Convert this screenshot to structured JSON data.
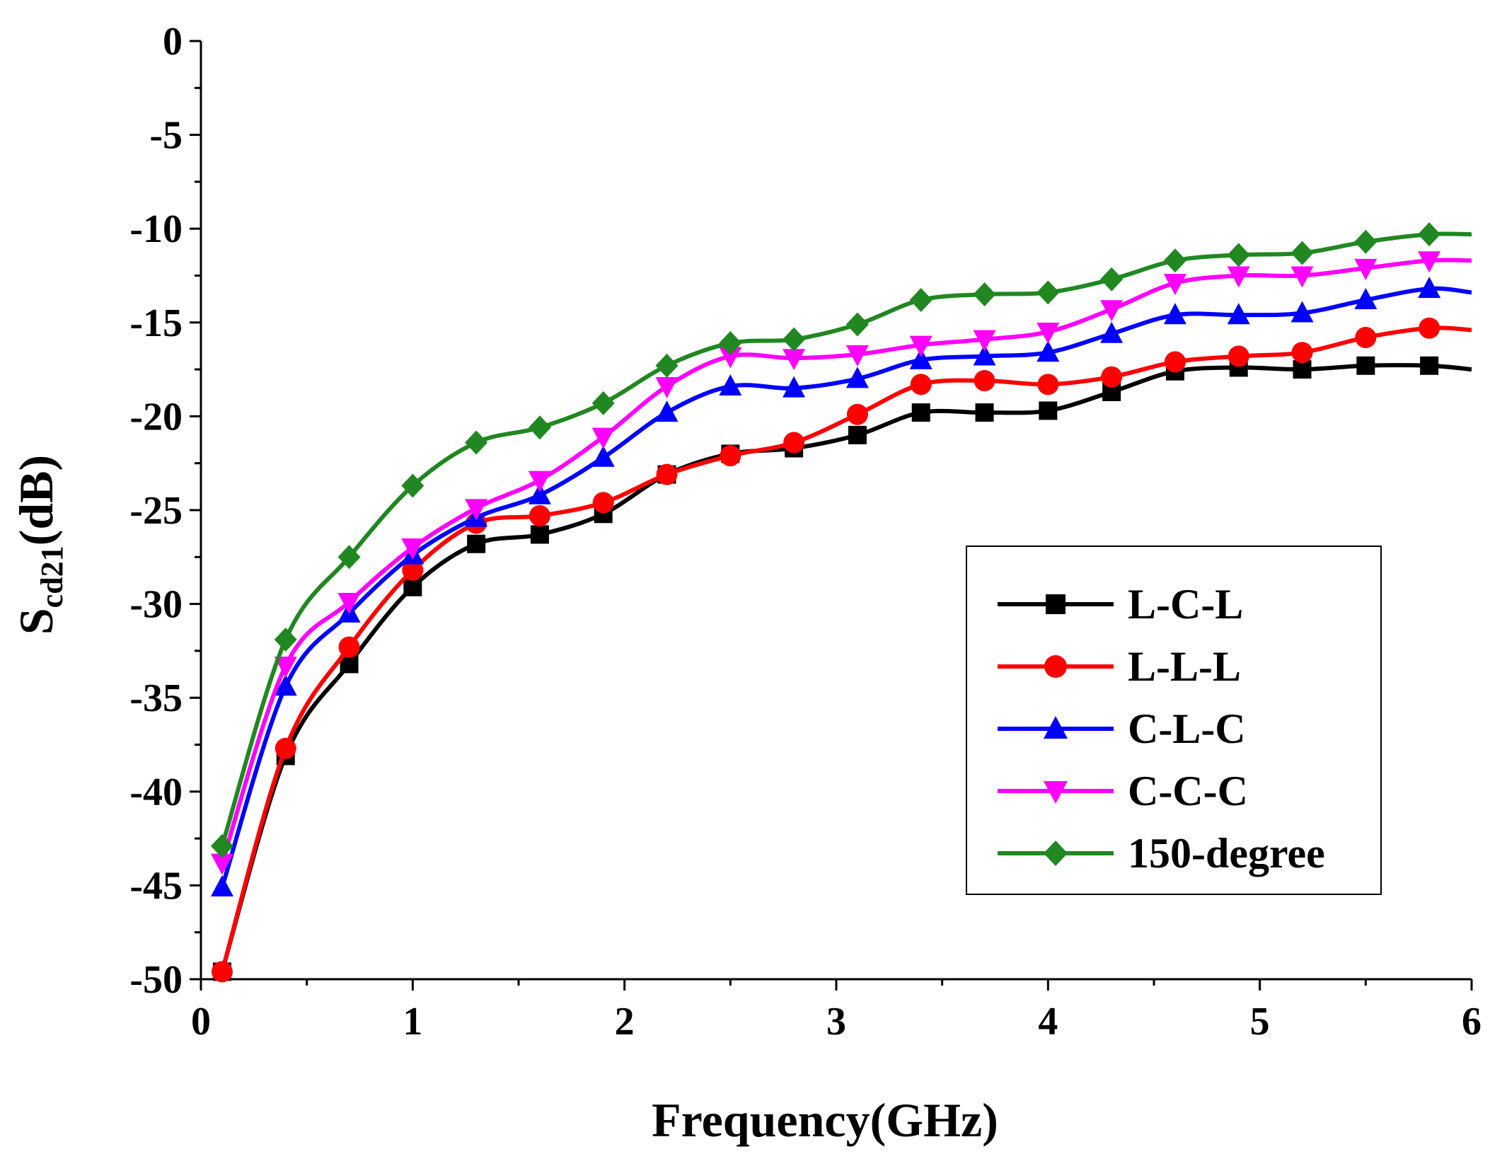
{
  "chart_data": {
    "type": "line",
    "title": "",
    "xlabel": "Frequency(GHz)",
    "ylabel_main": "S",
    "ylabel_sub": "cd21",
    "ylabel_unit": "(dB)",
    "xlim": [
      0,
      6
    ],
    "ylim": [
      -50,
      0
    ],
    "xticks": [
      0,
      1,
      2,
      3,
      4,
      5,
      6
    ],
    "yticks": [
      0,
      -5,
      -10,
      -15,
      -20,
      -25,
      -30,
      -35,
      -40,
      -45,
      -50
    ],
    "grid": false,
    "legend_position": "lower-right",
    "x": [
      0.1,
      0.4,
      0.7,
      1.0,
      1.3,
      1.6,
      1.9,
      2.2,
      2.5,
      2.8,
      3.1,
      3.4,
      3.7,
      4.0,
      4.3,
      4.6,
      4.9,
      5.2,
      5.5,
      5.8,
      6.0
    ],
    "series": [
      {
        "name": "L-C-L",
        "color": "#000000",
        "marker": "square",
        "values": [
          -49.6,
          -38.1,
          -33.2,
          -29.1,
          -26.8,
          -26.3,
          -25.2,
          -23.1,
          -22.0,
          -21.7,
          -21.0,
          -19.8,
          -19.8,
          -19.7,
          -18.7,
          -17.6,
          -17.4,
          -17.5,
          -17.3,
          -17.3,
          -17.5
        ]
      },
      {
        "name": "L-L-L",
        "color": "#ff0000",
        "marker": "circle",
        "values": [
          -49.6,
          -37.7,
          -32.3,
          -28.2,
          -25.7,
          -25.3,
          -24.6,
          -23.1,
          -22.1,
          -21.4,
          -19.9,
          -18.3,
          -18.1,
          -18.3,
          -17.9,
          -17.1,
          -16.8,
          -16.6,
          -15.8,
          -15.3,
          -15.4
        ]
      },
      {
        "name": "C-L-C",
        "color": "#0000ff",
        "marker": "triangle-up",
        "values": [
          -45.1,
          -34.4,
          -30.5,
          -27.4,
          -25.4,
          -24.2,
          -22.2,
          -19.8,
          -18.4,
          -18.5,
          -18.0,
          -17.0,
          -16.8,
          -16.6,
          -15.6,
          -14.6,
          -14.6,
          -14.5,
          -13.8,
          -13.2,
          -13.4
        ]
      },
      {
        "name": "C-C-C",
        "color": "#ff00ff",
        "marker": "triangle-down",
        "values": [
          -43.8,
          -33.3,
          -29.9,
          -27.0,
          -24.9,
          -23.4,
          -21.1,
          -18.4,
          -16.8,
          -16.9,
          -16.7,
          -16.2,
          -15.9,
          -15.5,
          -14.3,
          -12.9,
          -12.5,
          -12.5,
          -12.1,
          -11.7,
          -11.7
        ]
      },
      {
        "name": "150-degree",
        "color": "#218721",
        "marker": "diamond",
        "values": [
          -42.9,
          -31.9,
          -27.5,
          -23.7,
          -21.4,
          -20.6,
          -19.3,
          -17.3,
          -16.1,
          -15.9,
          -15.1,
          -13.8,
          -13.5,
          -13.4,
          -12.7,
          -11.7,
          -11.4,
          -11.3,
          -10.7,
          -10.3,
          -10.3
        ]
      }
    ]
  }
}
